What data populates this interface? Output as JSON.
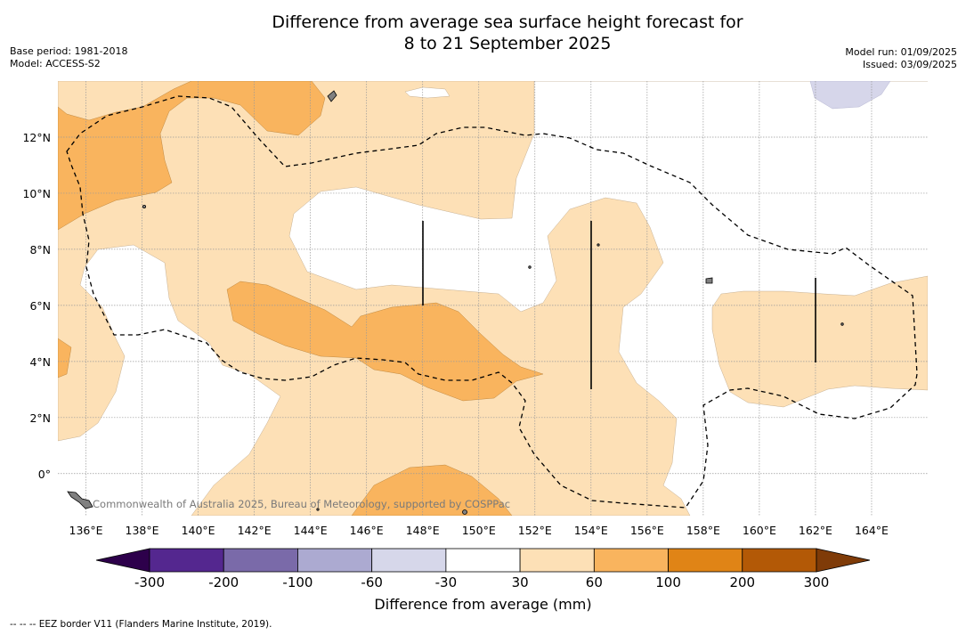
{
  "title": {
    "line1": "Difference from average sea surface height forecast for",
    "line2": "8 to 21 September 2025"
  },
  "meta": {
    "base_period": "Base period: 1981-2018",
    "model": "Model: ACCESS-S2",
    "model_run": "Model run: 01/09/2025",
    "issued": "Issued: 03/09/2025"
  },
  "map": {
    "copyright": "Commonwealth of Australia 2025, Bureau of Meteorology, supported by COSPPac",
    "lon_ticks": [
      "136°E",
      "138°E",
      "140°E",
      "142°E",
      "144°E",
      "146°E",
      "148°E",
      "150°E",
      "152°E",
      "154°E",
      "156°E",
      "158°E",
      "160°E",
      "162°E",
      "164°E"
    ],
    "lat_ticks": [
      "12°N",
      "10°N",
      "8°N",
      "6°N",
      "4°N",
      "2°N",
      "0°"
    ],
    "lon_values": [
      136,
      138,
      140,
      142,
      144,
      146,
      148,
      150,
      152,
      154,
      156,
      158,
      160,
      162,
      164
    ],
    "lat_values": [
      12,
      10,
      8,
      6,
      4,
      2,
      0
    ],
    "lon_range": [
      135,
      166
    ],
    "lat_range": [
      -1.5,
      14
    ],
    "eez_style": "dashed-black",
    "colors": {
      "pos_30_60": "#fde0b6",
      "pos_60_100": "#f9b45e",
      "neg_30_60": "#d6d6ea",
      "gridline": "#999999",
      "land": "#808080"
    }
  },
  "colorbar": {
    "label": "Difference from average (mm)",
    "units": "mm",
    "ticks": [
      "-300",
      "-200",
      "-100",
      "-60",
      "-30",
      "30",
      "60",
      "100",
      "200",
      "300"
    ],
    "colors": [
      "#54278f",
      "#7a6aa9",
      "#acaad1",
      "#d6d7ea",
      "#ffffff",
      "#fde0b6",
      "#f9b45e",
      "#e08416",
      "#b35906"
    ],
    "extend_low_color": "#2d004b",
    "extend_high_color": "#7f3b08"
  },
  "footer": {
    "eez_legend": "--  --  -- EEZ border V11 (Flanders Marine Institute, 2019)."
  }
}
